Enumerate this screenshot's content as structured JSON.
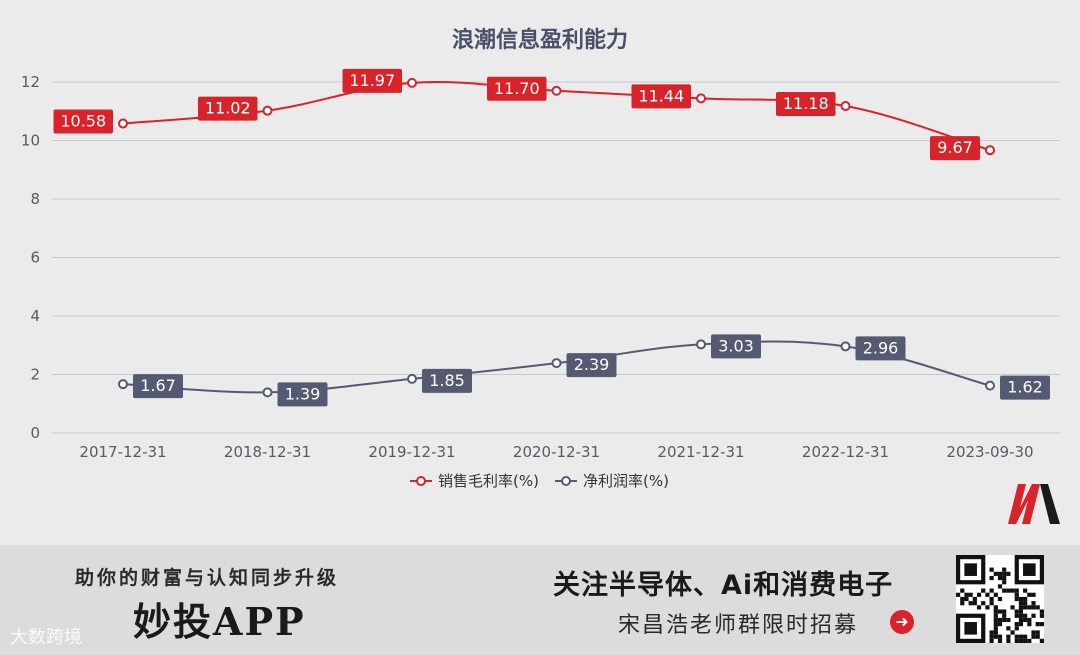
{
  "chart_data": {
    "type": "line",
    "title": "浪潮信息盈利能力",
    "categories": [
      "2017-12-31",
      "2018-12-31",
      "2019-12-31",
      "2020-12-31",
      "2021-12-31",
      "2022-12-31",
      "2023-09-30"
    ],
    "series": [
      {
        "name": "销售毛利率(%)",
        "values": [
          10.58,
          11.02,
          11.97,
          11.7,
          11.44,
          11.18,
          9.67
        ],
        "labels": [
          "10.58",
          "11.02",
          "11.97",
          "11.70",
          "11.44",
          "11.18",
          "9.67"
        ],
        "color": "#d8232a"
      },
      {
        "name": "净利润率(%)",
        "values": [
          1.67,
          1.39,
          1.85,
          2.39,
          3.03,
          2.96,
          1.62
        ],
        "labels": [
          "1.67",
          "1.39",
          "1.85",
          "2.39",
          "3.03",
          "2.96",
          "1.62"
        ],
        "color": "#555a73"
      }
    ],
    "yticks": [
      0,
      2,
      4,
      6,
      8,
      10,
      12
    ],
    "ylim": [
      0,
      12
    ],
    "grid": true,
    "legend": "bottom-center"
  },
  "banner": {
    "slogan": "助你的财富与认知同步升级",
    "app_name": "妙投APP",
    "headline": "关注半导体、Ai和消费电子",
    "sub": "宋昌浩老师群限时招募",
    "watermark": "大数跨境"
  }
}
